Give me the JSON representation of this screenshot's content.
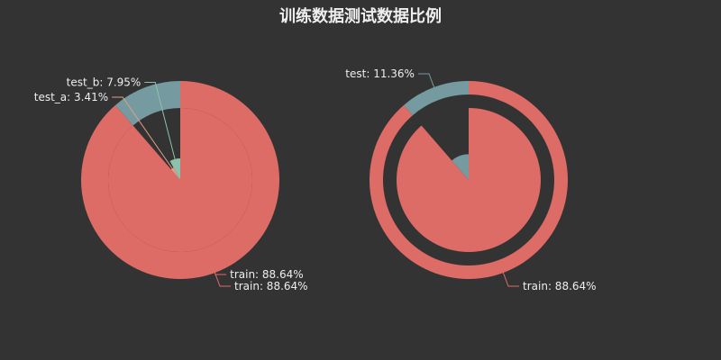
{
  "title": "训练数据测试数据比例",
  "colors": {
    "background": "#333333",
    "train": "#dd6b66",
    "test": "#759aa0",
    "test_a": "#e69d87",
    "test_b": "#8dc1a9"
  },
  "chart_data": [
    {
      "type": "pie",
      "title": "",
      "rings": [
        {
          "ring": "outer",
          "slices": [
            {
              "name": "train",
              "value": 88.64,
              "label": "train: 88.64%"
            },
            {
              "name": "test",
              "value": 11.36,
              "label": ""
            }
          ]
        },
        {
          "ring": "inner",
          "rose": true,
          "slices": [
            {
              "name": "train",
              "value": 88.64,
              "label": "train: 88.64%"
            },
            {
              "name": "test_a",
              "value": 3.41,
              "label": "test_a: 3.41%"
            },
            {
              "name": "test_b",
              "value": 7.95,
              "label": "test_b: 7.95%"
            }
          ]
        }
      ]
    },
    {
      "type": "pie",
      "title": "",
      "rings": [
        {
          "ring": "outer",
          "slices": [
            {
              "name": "train",
              "value": 88.64,
              "label": "train: 88.64%"
            },
            {
              "name": "test",
              "value": 11.36,
              "label": "test: 11.36%"
            }
          ]
        },
        {
          "ring": "inner",
          "rose": true,
          "slices": [
            {
              "name": "train",
              "value": 88.64,
              "label": ""
            },
            {
              "name": "test",
              "value": 11.36,
              "label": ""
            }
          ]
        }
      ]
    }
  ]
}
